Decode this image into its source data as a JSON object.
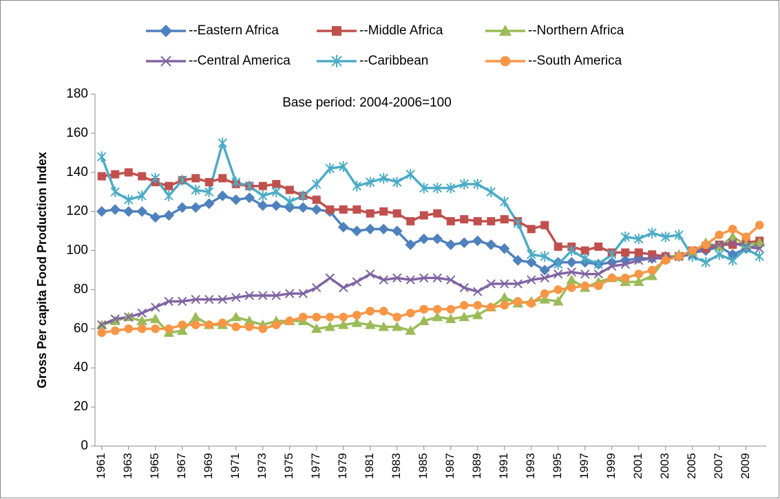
{
  "chart_data": {
    "type": "line",
    "annotation": "Base period: 2004-2006=100",
    "y_label": "Gross Per capita Food Production Index",
    "legend": "top",
    "x": [
      1961,
      1962,
      1963,
      1964,
      1965,
      1966,
      1967,
      1968,
      1969,
      1970,
      1971,
      1972,
      1973,
      1974,
      1975,
      1976,
      1977,
      1978,
      1979,
      1980,
      1981,
      1982,
      1983,
      1984,
      1985,
      1986,
      1987,
      1988,
      1989,
      1990,
      1991,
      1992,
      1993,
      1994,
      1995,
      1996,
      1997,
      1998,
      1999,
      2000,
      2001,
      2002,
      2003,
      2004,
      2005,
      2006,
      2007,
      2008,
      2009,
      2010
    ],
    "xlim": [
      1960.5,
      2010.5
    ],
    "xticks": [
      1961,
      1963,
      1965,
      1967,
      1969,
      1971,
      1973,
      1975,
      1977,
      1979,
      1981,
      1983,
      1985,
      1987,
      1989,
      1991,
      1993,
      1995,
      1997,
      1999,
      2001,
      2003,
      2005,
      2007,
      2009
    ],
    "ylim": [
      0,
      180
    ],
    "yticks": [
      0,
      20,
      40,
      60,
      80,
      100,
      120,
      140,
      160,
      180
    ],
    "grid": false,
    "series": [
      {
        "name": "--Eastern Africa",
        "color": "#4F81BD",
        "marker": "diamond",
        "values": [
          120,
          121,
          120,
          120,
          117,
          118,
          122,
          122,
          124,
          128,
          126,
          127,
          123,
          123,
          122,
          122,
          121,
          120,
          112,
          110,
          111,
          111,
          110,
          103,
          106,
          106,
          103,
          104,
          105,
          103,
          101,
          95,
          94,
          90,
          94,
          94,
          94,
          93,
          94,
          95,
          96,
          96,
          97,
          97,
          99,
          100,
          102,
          98,
          101,
          103
        ]
      },
      {
        "name": "--Middle Africa",
        "color": "#C0504D",
        "marker": "square",
        "values": [
          138,
          139,
          140,
          138,
          135,
          133,
          136,
          137,
          135,
          137,
          134,
          133,
          133,
          134,
          131,
          128,
          126,
          121,
          121,
          121,
          119,
          120,
          119,
          115,
          118,
          119,
          115,
          116,
          115,
          115,
          116,
          115,
          111,
          113,
          102,
          102,
          100,
          102,
          99,
          99,
          99,
          98,
          97,
          97,
          100,
          101,
          103,
          103,
          104,
          105
        ]
      },
      {
        "name": "--Northern Africa",
        "color": "#9BBB59",
        "marker": "triangle",
        "values": [
          62,
          64,
          66,
          64,
          65,
          58,
          59,
          66,
          62,
          62,
          66,
          64,
          62,
          64,
          64,
          64,
          60,
          61,
          62,
          63,
          62,
          61,
          61,
          59,
          64,
          66,
          65,
          66,
          67,
          71,
          76,
          73,
          74,
          75,
          74,
          85,
          81,
          84,
          86,
          84,
          84,
          87,
          96,
          98,
          99,
          104,
          102,
          107,
          103,
          104
        ]
      },
      {
        "name": "--Central America",
        "color": "#8064A2",
        "marker": "x",
        "values": [
          62,
          65,
          66,
          68,
          71,
          74,
          74,
          75,
          75,
          75,
          76,
          77,
          77,
          77,
          78,
          78,
          81,
          86,
          81,
          84,
          88,
          85,
          86,
          85,
          86,
          86,
          85,
          81,
          79,
          83,
          83,
          83,
          85,
          86,
          88,
          89,
          88,
          88,
          92,
          93,
          95,
          96,
          96,
          97,
          98,
          102,
          103,
          104,
          102,
          101
        ]
      },
      {
        "name": "--Caribbean",
        "color": "#4BACC6",
        "marker": "asterisk",
        "values": [
          148,
          130,
          126,
          128,
          137,
          128,
          136,
          131,
          130,
          155,
          135,
          133,
          128,
          130,
          125,
          128,
          134,
          142,
          143,
          133,
          135,
          137,
          135,
          139,
          132,
          132,
          132,
          134,
          134,
          130,
          125,
          114,
          98,
          97,
          93,
          100,
          96,
          93,
          98,
          107,
          106,
          109,
          107,
          108,
          97,
          94,
          98,
          95,
          101,
          97
        ]
      },
      {
        "name": "--South America",
        "color": "#F79646",
        "marker": "circle",
        "values": [
          58,
          59,
          60,
          60,
          60,
          60,
          62,
          62,
          62,
          63,
          61,
          61,
          60,
          62,
          64,
          66,
          66,
          66,
          66,
          67,
          69,
          69,
          66,
          68,
          70,
          70,
          70,
          72,
          72,
          71,
          72,
          74,
          73,
          78,
          80,
          81,
          82,
          82,
          86,
          86,
          88,
          90,
          95,
          97,
          100,
          103,
          108,
          111,
          107,
          113
        ]
      }
    ]
  }
}
